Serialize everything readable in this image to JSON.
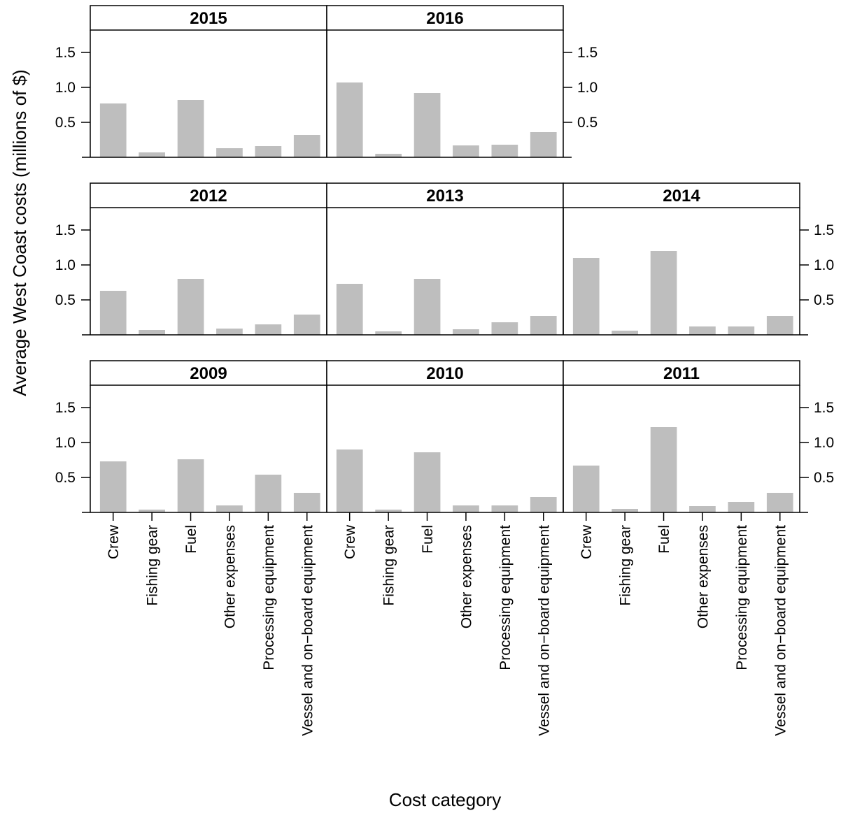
{
  "chart_data": {
    "type": "bar",
    "layout": "lattice 3x3 (panels by year)",
    "xlabel": "Cost category",
    "ylabel": "Average West Coast costs (millions of $)",
    "categories": [
      "Crew",
      "Fishing gear",
      "Fuel",
      "Other expenses",
      "Processing equipment",
      "Vessel and on−board equipment"
    ],
    "ylim": [
      0,
      1.85
    ],
    "yticks": [
      "0.5",
      "1.0",
      "1.5"
    ],
    "bar_color": "#bebebe",
    "panels": [
      {
        "year": "2015",
        "values": [
          0.77,
          0.07,
          0.82,
          0.13,
          0.16,
          0.32
        ]
      },
      {
        "year": "2016",
        "values": [
          1.07,
          0.05,
          0.92,
          0.17,
          0.18,
          0.36
        ]
      },
      {
        "year": "2012",
        "values": [
          0.63,
          0.07,
          0.8,
          0.09,
          0.15,
          0.29
        ]
      },
      {
        "year": "2013",
        "values": [
          0.73,
          0.05,
          0.8,
          0.08,
          0.18,
          0.27
        ]
      },
      {
        "year": "2014",
        "values": [
          1.1,
          0.06,
          1.2,
          0.12,
          0.12,
          0.27
        ]
      },
      {
        "year": "2009",
        "values": [
          0.73,
          0.04,
          0.76,
          0.1,
          0.54,
          0.28
        ]
      },
      {
        "year": "2010",
        "values": [
          0.9,
          0.04,
          0.86,
          0.1,
          0.1,
          0.22
        ]
      },
      {
        "year": "2011",
        "values": [
          0.67,
          0.05,
          1.22,
          0.09,
          0.15,
          0.28
        ]
      }
    ]
  }
}
